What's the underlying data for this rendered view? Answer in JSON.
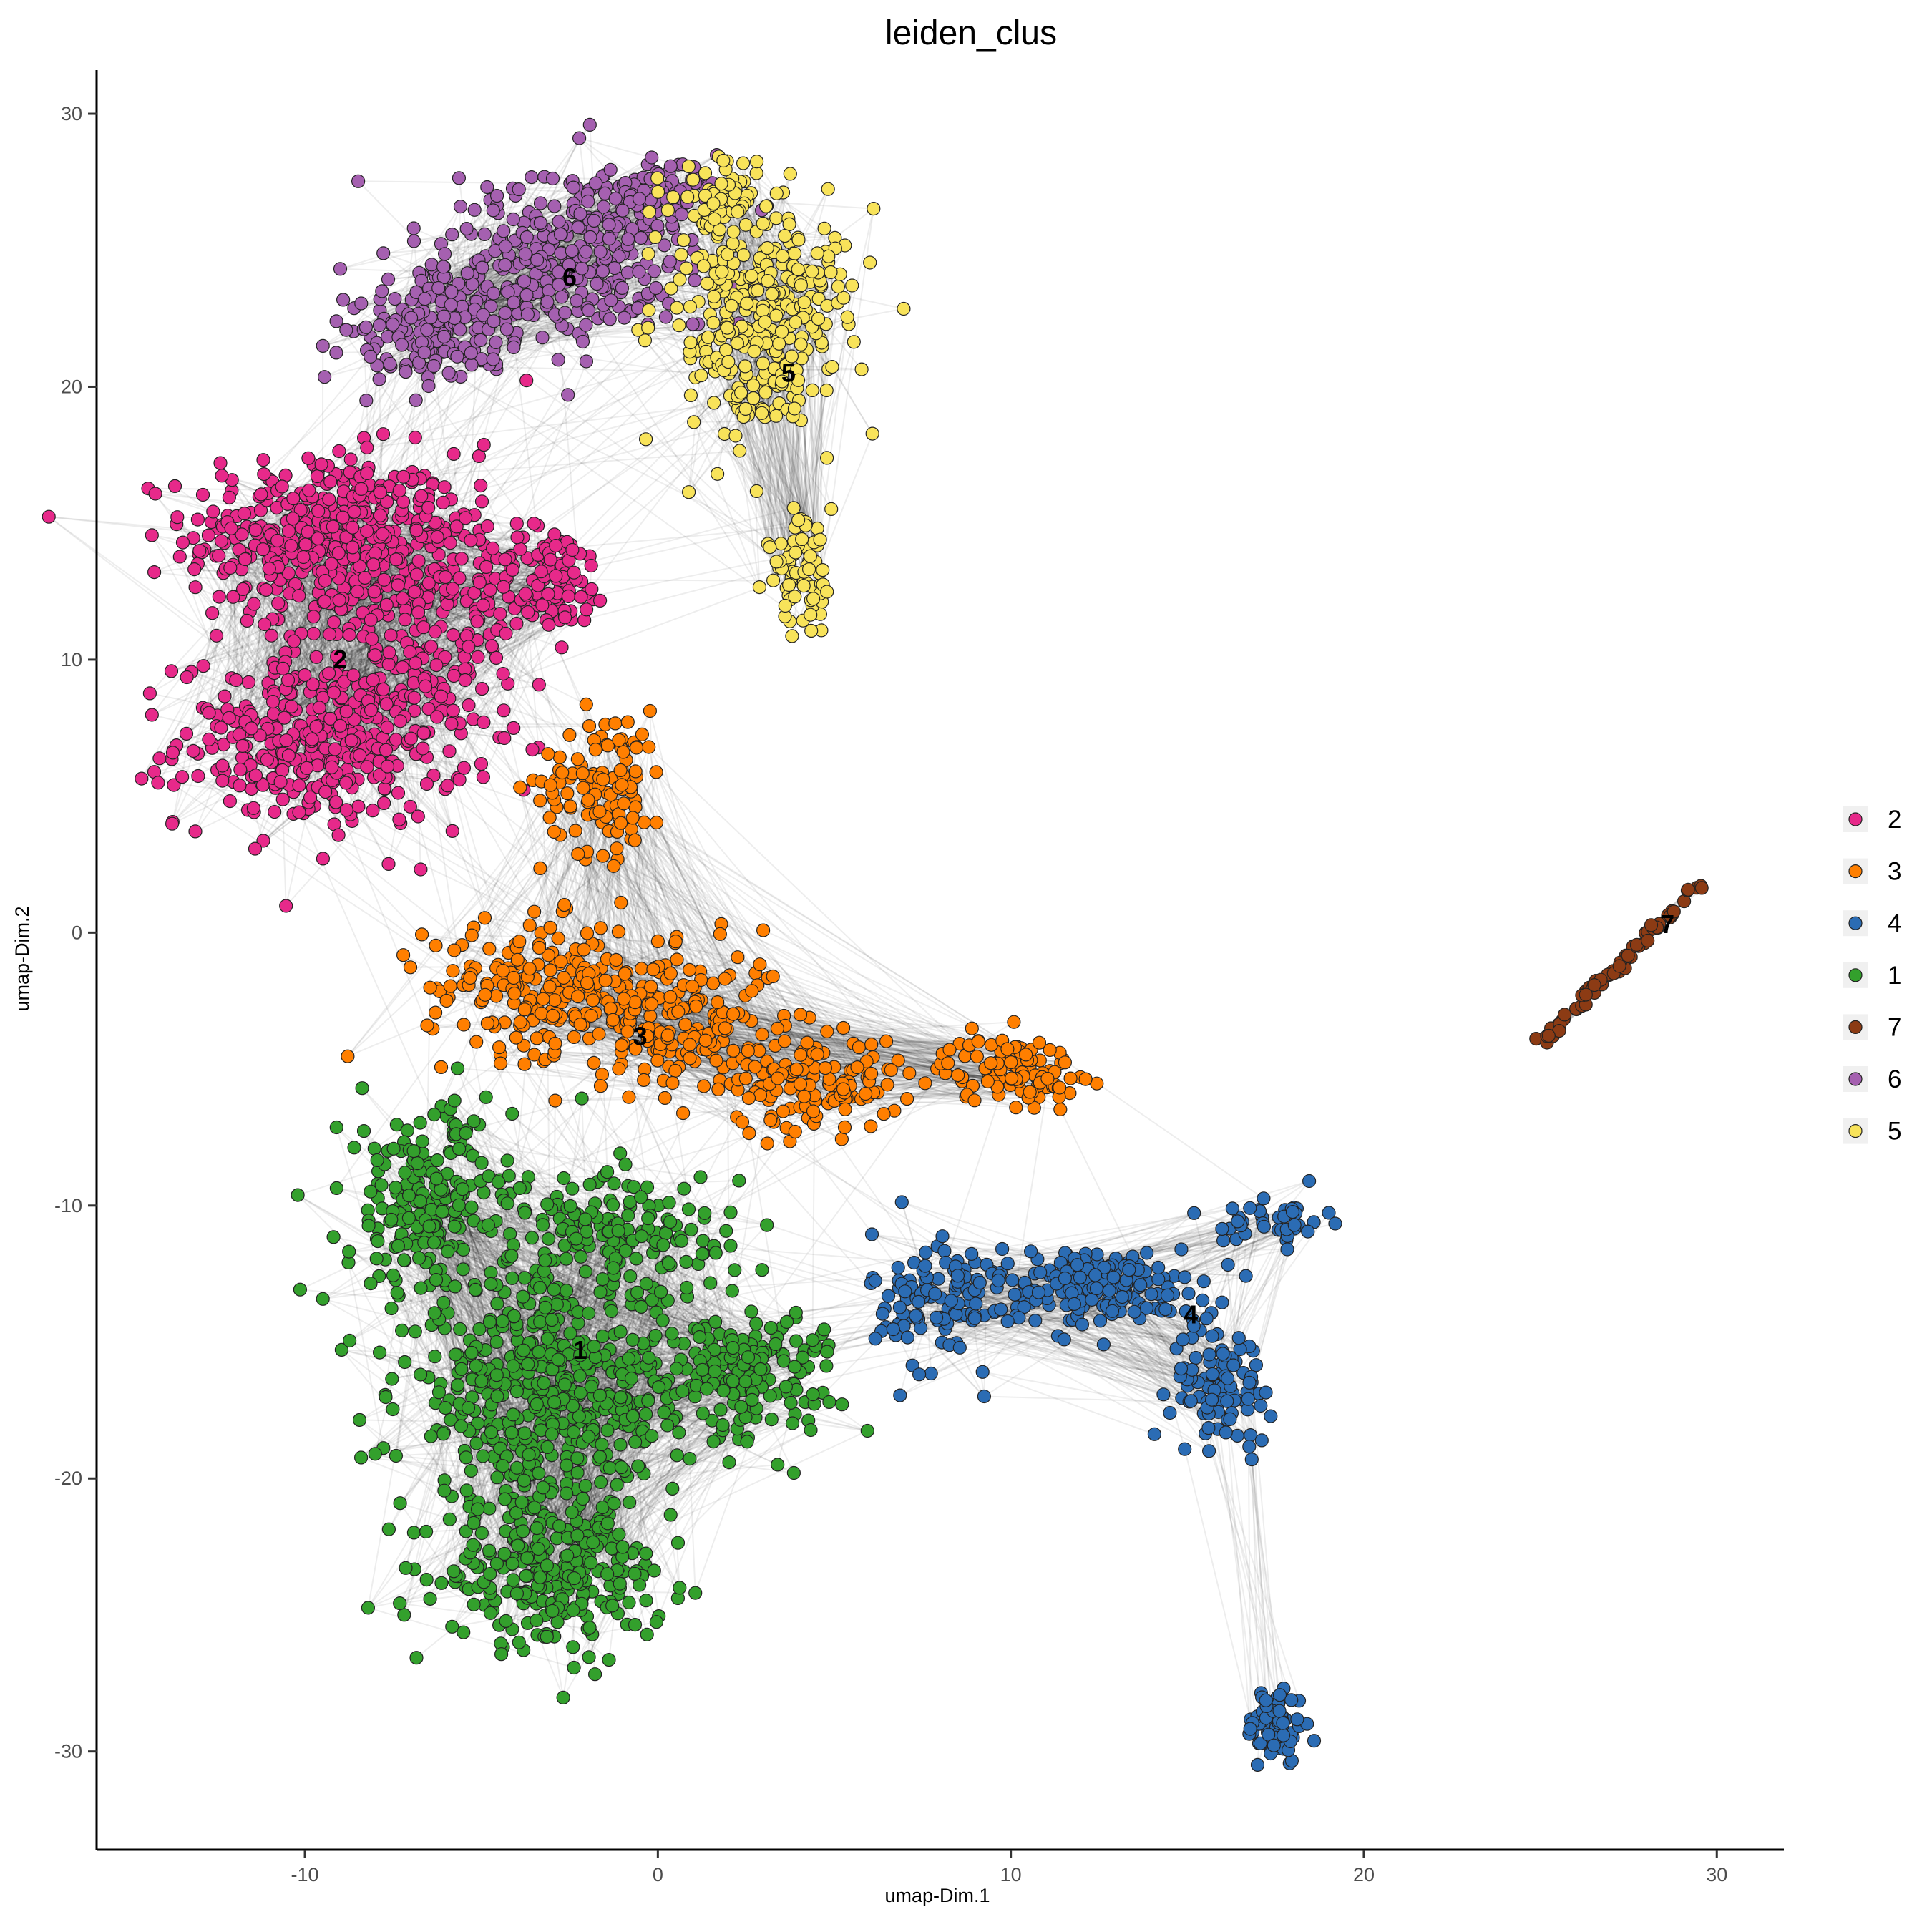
{
  "chart_data": {
    "type": "scatter",
    "title": "leiden_clus",
    "xlabel": "umap-Dim.1",
    "ylabel": "umap-Dim.2",
    "xlim": [
      -15.9,
      31.9
    ],
    "ylim": [
      -33.6,
      31.6
    ],
    "xticks": [
      -10,
      0,
      10,
      20,
      30
    ],
    "yticks": [
      30,
      20,
      10,
      0,
      -10,
      -20,
      -30
    ],
    "grid": false,
    "legend_position": "right",
    "network_edges": true,
    "series": [
      {
        "name": "2",
        "color": "#E7298A",
        "center": [
          -9.0,
          11.0
        ],
        "label_pos": [
          -9.0,
          10.0
        ],
        "blobs": [
          [
            -9.5,
            14.5,
            3.2,
            2.6,
            380
          ],
          [
            -9.5,
            7.0,
            3.4,
            2.6,
            380
          ],
          [
            -6.5,
            12.0,
            2.8,
            4.0,
            250
          ],
          [
            -3.0,
            13.0,
            1.4,
            1.6,
            90
          ]
        ]
      },
      {
        "name": "3",
        "color": "#FF7F00",
        "center": [
          -0.5,
          -3.5
        ],
        "label_pos": [
          -0.5,
          -3.8
        ],
        "blobs": [
          [
            -1.5,
            5.5,
            1.5,
            2.2,
            110
          ],
          [
            -3.0,
            -2.0,
            3.0,
            2.0,
            220
          ],
          [
            1.0,
            -3.5,
            2.2,
            2.4,
            160
          ],
          [
            4.5,
            -5.5,
            2.0,
            1.4,
            120
          ],
          [
            10.0,
            -5.0,
            1.6,
            1.0,
            110
          ]
        ]
      },
      {
        "name": "4",
        "color": "#2B6CB4",
        "center": [
          15.0,
          -14.0
        ],
        "label_pos": [
          15.1,
          -14.0
        ],
        "blobs": [
          [
            8.0,
            -13.5,
            1.6,
            2.2,
            120
          ],
          [
            12.5,
            -13.0,
            2.5,
            1.2,
            170
          ],
          [
            16.0,
            -16.5,
            1.2,
            1.8,
            90
          ],
          [
            17.5,
            -29.0,
            0.7,
            1.2,
            70
          ],
          [
            17.5,
            -10.5,
            1.2,
            0.8,
            40
          ]
        ]
      },
      {
        "name": "1",
        "color": "#33A02C",
        "center": [
          -3.0,
          -17.0
        ],
        "label_pos": [
          -2.2,
          -15.3
        ],
        "blobs": [
          [
            -6.5,
            -10.0,
            2.0,
            3.0,
            220
          ],
          [
            -3.0,
            -17.0,
            3.6,
            3.6,
            520
          ],
          [
            -3.0,
            -23.5,
            2.6,
            2.2,
            260
          ],
          [
            2.5,
            -16.0,
            2.2,
            1.8,
            160
          ],
          [
            -1.0,
            -11.0,
            2.6,
            2.0,
            150
          ]
        ]
      },
      {
        "name": "7",
        "color": "#8C3B14",
        "center": [
          28.5,
          0.5
        ],
        "label_pos": [
          28.6,
          0.3
        ],
        "line": [
          [
            25.0,
            -4.0
          ],
          [
            29.6,
            1.9
          ]
        ],
        "count": 70
      },
      {
        "name": "6",
        "color": "#A560B0",
        "center": [
          -3.0,
          24.0
        ],
        "label_pos": [
          -2.5,
          24.0
        ],
        "blobs": [
          [
            -3.0,
            24.5,
            3.2,
            2.6,
            330
          ],
          [
            -6.5,
            22.0,
            2.2,
            1.6,
            150
          ],
          [
            0.0,
            27.0,
            1.6,
            1.0,
            90
          ]
        ]
      },
      {
        "name": "5",
        "color": "#F8E35A",
        "center": [
          3.5,
          20.5
        ],
        "label_pos": [
          3.7,
          20.5
        ],
        "blobs": [
          [
            3.0,
            22.5,
            2.0,
            3.6,
            330
          ],
          [
            4.0,
            13.5,
            0.8,
            2.0,
            70
          ],
          [
            2.0,
            26.5,
            1.2,
            1.4,
            60
          ]
        ]
      }
    ]
  }
}
